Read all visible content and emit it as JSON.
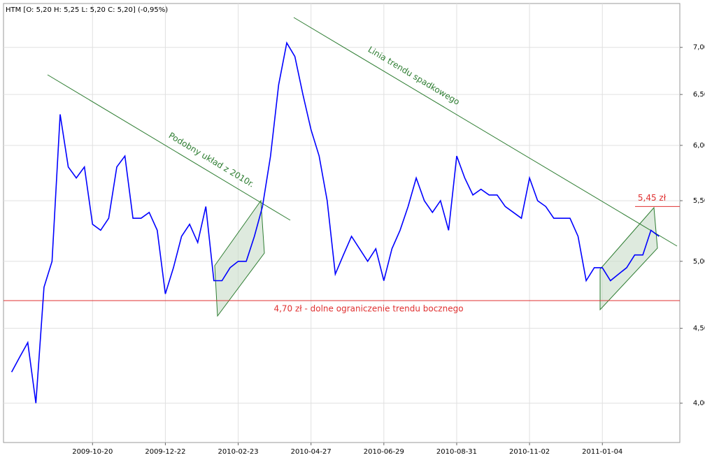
{
  "chart_data": {
    "type": "line",
    "title": "HTM [O: 5,20  H: 5,25  L: 5,20  C: 5,20] (-0,95%)",
    "log_scale": true,
    "grid": true,
    "xlim": [
      "2009-08-04",
      "2011-03-12"
    ],
    "xticks": [
      "2009-10-20",
      "2009-12-22",
      "2010-02-23",
      "2010-04-27",
      "2010-06-29",
      "2010-08-31",
      "2010-11-02",
      "2011-01-04"
    ],
    "ylim": [
      3.76,
      7.5
    ],
    "yticks": [
      {
        "value": 4,
        "label": "4,00"
      },
      {
        "value": 4.5,
        "label": "4,50"
      },
      {
        "value": 5,
        "label": "5,00"
      },
      {
        "value": 5.5,
        "label": "5,50"
      },
      {
        "value": 6,
        "label": "6,00"
      },
      {
        "value": 6.5,
        "label": "6,50"
      },
      {
        "value": 7,
        "label": "7,00"
      }
    ],
    "x": [
      "2009-08-11",
      "2009-08-18",
      "2009-08-25",
      "2009-09-01",
      "2009-09-08",
      "2009-09-15",
      "2009-09-22",
      "2009-09-29",
      "2009-10-06",
      "2009-10-13",
      "2009-10-20",
      "2009-10-27",
      "2009-11-03",
      "2009-11-10",
      "2009-11-17",
      "2009-11-24",
      "2009-12-01",
      "2009-12-08",
      "2009-12-15",
      "2009-12-22",
      "2009-12-29",
      "2010-01-05",
      "2010-01-12",
      "2010-01-19",
      "2010-01-26",
      "2010-02-02",
      "2010-02-09",
      "2010-02-16",
      "2010-02-23",
      "2010-03-02",
      "2010-03-09",
      "2010-03-16",
      "2010-03-23",
      "2010-03-30",
      "2010-04-06",
      "2010-04-13",
      "2010-04-20",
      "2010-04-27",
      "2010-05-04",
      "2010-05-11",
      "2010-05-18",
      "2010-05-25",
      "2010-06-01",
      "2010-06-08",
      "2010-06-15",
      "2010-06-22",
      "2010-06-29",
      "2010-07-06",
      "2010-07-13",
      "2010-07-20",
      "2010-07-27",
      "2010-08-03",
      "2010-08-10",
      "2010-08-17",
      "2010-08-24",
      "2010-08-31",
      "2010-09-07",
      "2010-09-14",
      "2010-09-21",
      "2010-09-28",
      "2010-10-05",
      "2010-10-12",
      "2010-10-19",
      "2010-10-26",
      "2010-11-02",
      "2010-11-09",
      "2010-11-16",
      "2010-11-23",
      "2010-11-30",
      "2010-12-07",
      "2010-12-14",
      "2010-12-21",
      "2010-12-28",
      "2011-01-04",
      "2011-01-11",
      "2011-01-18",
      "2011-01-25",
      "2011-02-01",
      "2011-02-08",
      "2011-02-15",
      "2011-02-22"
    ],
    "series": [
      {
        "name": "HTM",
        "color": "#0000ff",
        "values": [
          4.2,
          4.3,
          4.4,
          4.0,
          4.8,
          5.0,
          6.3,
          5.8,
          5.7,
          5.8,
          5.3,
          5.25,
          5.35,
          5.8,
          5.9,
          5.35,
          5.35,
          5.4,
          5.25,
          4.75,
          4.95,
          5.2,
          5.3,
          5.15,
          5.45,
          4.85,
          4.85,
          4.95,
          5.0,
          5.0,
          5.2,
          5.45,
          5.9,
          6.6,
          7.05,
          6.9,
          6.5,
          6.15,
          5.9,
          5.5,
          4.9,
          5.05,
          5.2,
          5.1,
          5.0,
          5.1,
          4.85,
          5.1,
          5.25,
          5.45,
          5.7,
          5.5,
          5.4,
          5.5,
          5.25,
          5.9,
          5.7,
          5.55,
          5.6,
          5.55,
          5.55,
          5.45,
          5.4,
          5.35,
          5.7,
          5.5,
          5.45,
          5.35,
          5.35,
          5.35,
          5.2,
          4.85,
          4.95,
          4.95,
          4.85,
          4.9,
          4.95,
          5.05,
          5.05,
          5.25,
          5.2
        ]
      }
    ],
    "hlines": [
      {
        "value": 4.7,
        "label": "4,70 zł - dolne ograniczenie trendu bocznego",
        "color": "#e03030"
      },
      {
        "value": 5.45,
        "label": "5,45 zł",
        "color": "#e03030"
      }
    ],
    "annotations": [
      "Podobny układ z 2010r.",
      "Linia trendu spadkowego"
    ]
  }
}
